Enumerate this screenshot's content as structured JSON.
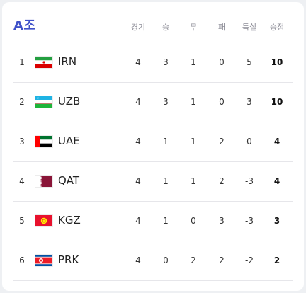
{
  "title": "A조",
  "headers": {
    "played": "경기",
    "won": "승",
    "drawn": "무",
    "lost": "패",
    "goal_diff": "득실",
    "points": "승점"
  },
  "rows": [
    {
      "rank": "1",
      "team": "IRN",
      "flag": "iran-flag-icon",
      "played": "4",
      "won": "3",
      "drawn": "1",
      "lost": "0",
      "goal_diff": "5",
      "points": "10"
    },
    {
      "rank": "2",
      "team": "UZB",
      "flag": "uzbekistan-flag-icon",
      "played": "4",
      "won": "3",
      "drawn": "1",
      "lost": "0",
      "goal_diff": "3",
      "points": "10"
    },
    {
      "rank": "3",
      "team": "UAE",
      "flag": "uae-flag-icon",
      "played": "4",
      "won": "1",
      "drawn": "1",
      "lost": "2",
      "goal_diff": "0",
      "points": "4"
    },
    {
      "rank": "4",
      "team": "QAT",
      "flag": "qatar-flag-icon",
      "played": "4",
      "won": "1",
      "drawn": "1",
      "lost": "2",
      "goal_diff": "-3",
      "points": "4"
    },
    {
      "rank": "5",
      "team": "KGZ",
      "flag": "kyrgyzstan-flag-icon",
      "played": "4",
      "won": "1",
      "drawn": "0",
      "lost": "3",
      "goal_diff": "-3",
      "points": "3"
    },
    {
      "rank": "6",
      "team": "PRK",
      "flag": "north-korea-flag-icon",
      "played": "4",
      "won": "0",
      "drawn": "2",
      "lost": "2",
      "goal_diff": "-2",
      "points": "2"
    }
  ],
  "colors": {
    "title": "#3f51c9",
    "header_text": "#8c8c96",
    "divider": "#e6e6ea"
  }
}
